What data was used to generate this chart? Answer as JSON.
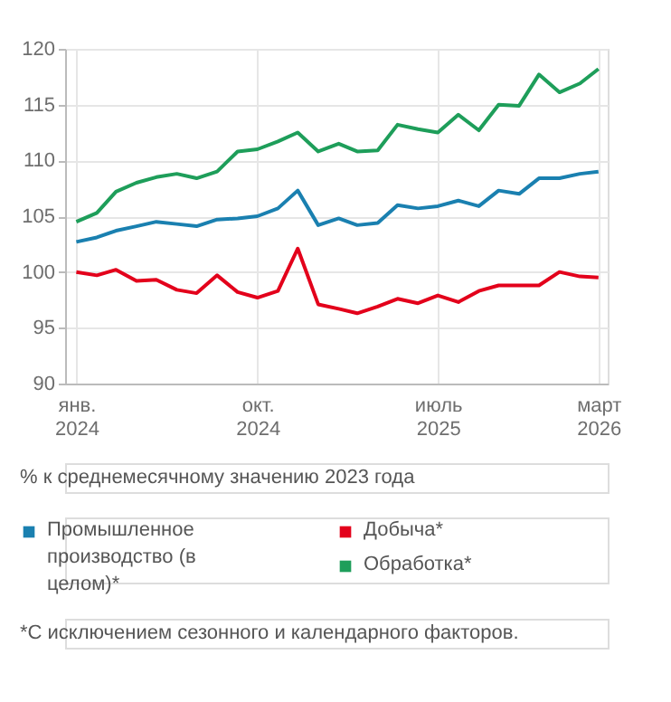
{
  "chart_data": {
    "type": "line",
    "x": [
      "2024-01",
      "2024-02",
      "2024-03",
      "2024-04",
      "2024-05",
      "2024-06",
      "2024-07",
      "2024-08",
      "2024-09",
      "2024-10",
      "2024-11",
      "2024-12",
      "2025-01",
      "2025-02",
      "2025-03",
      "2025-04",
      "2025-05",
      "2025-06",
      "2025-07",
      "2025-08",
      "2025-09",
      "2025-10",
      "2025-11",
      "2025-12",
      "2026-01",
      "2026-02",
      "2026-03"
    ],
    "series": [
      {
        "name": "Промышленное производство (в целом)*",
        "color": "#1a80b0",
        "values": [
          102.7,
          103.1,
          103.7,
          104.1,
          104.5,
          104.3,
          104.1,
          104.7,
          104.8,
          105.0,
          105.7,
          107.3,
          104.2,
          104.8,
          104.2,
          104.4,
          106.0,
          105.7,
          105.9,
          106.4,
          105.9,
          107.3,
          107.0,
          108.4,
          108.4,
          108.8,
          109.0
        ]
      },
      {
        "name": "Добыча*",
        "color": "#e3001b",
        "values": [
          100.0,
          99.7,
          100.2,
          99.2,
          99.3,
          98.4,
          98.1,
          99.7,
          98.2,
          97.7,
          98.3,
          102.1,
          97.1,
          96.7,
          96.3,
          96.9,
          97.6,
          97.2,
          97.9,
          97.3,
          98.3,
          98.8,
          98.8,
          98.8,
          100.0,
          99.6,
          99.5
        ]
      },
      {
        "name": "Обработка*",
        "color": "#1e9e5a",
        "values": [
          104.5,
          105.3,
          107.2,
          108.0,
          108.5,
          108.8,
          108.4,
          109.0,
          110.8,
          111.0,
          111.7,
          112.5,
          110.8,
          111.5,
          110.8,
          110.9,
          113.2,
          112.8,
          112.5,
          114.1,
          112.7,
          115.0,
          114.9,
          117.7,
          116.1,
          116.9,
          118.2
        ]
      }
    ],
    "xlim": [
      "2023-12-15",
      "2026-03-15"
    ],
    "xticks": [
      {
        "value": "2024-01",
        "label": "янв. 2024"
      },
      {
        "value": "2024-10",
        "label": "окт. 2024"
      },
      {
        "value": "2025-07",
        "label": "июль 2025"
      },
      {
        "value": "2026-03",
        "label": "март 2026"
      }
    ],
    "ylim": [
      90,
      120
    ],
    "yticks": [
      90,
      95,
      100,
      105,
      110,
      115,
      120
    ],
    "grid": true,
    "legend": "bottom",
    "marker": "none",
    "line_style": "solid",
    "annotations": [
      "% к среднемесячному значению 2023 года",
      "*С исключением сезонного и календарного факторов."
    ]
  }
}
